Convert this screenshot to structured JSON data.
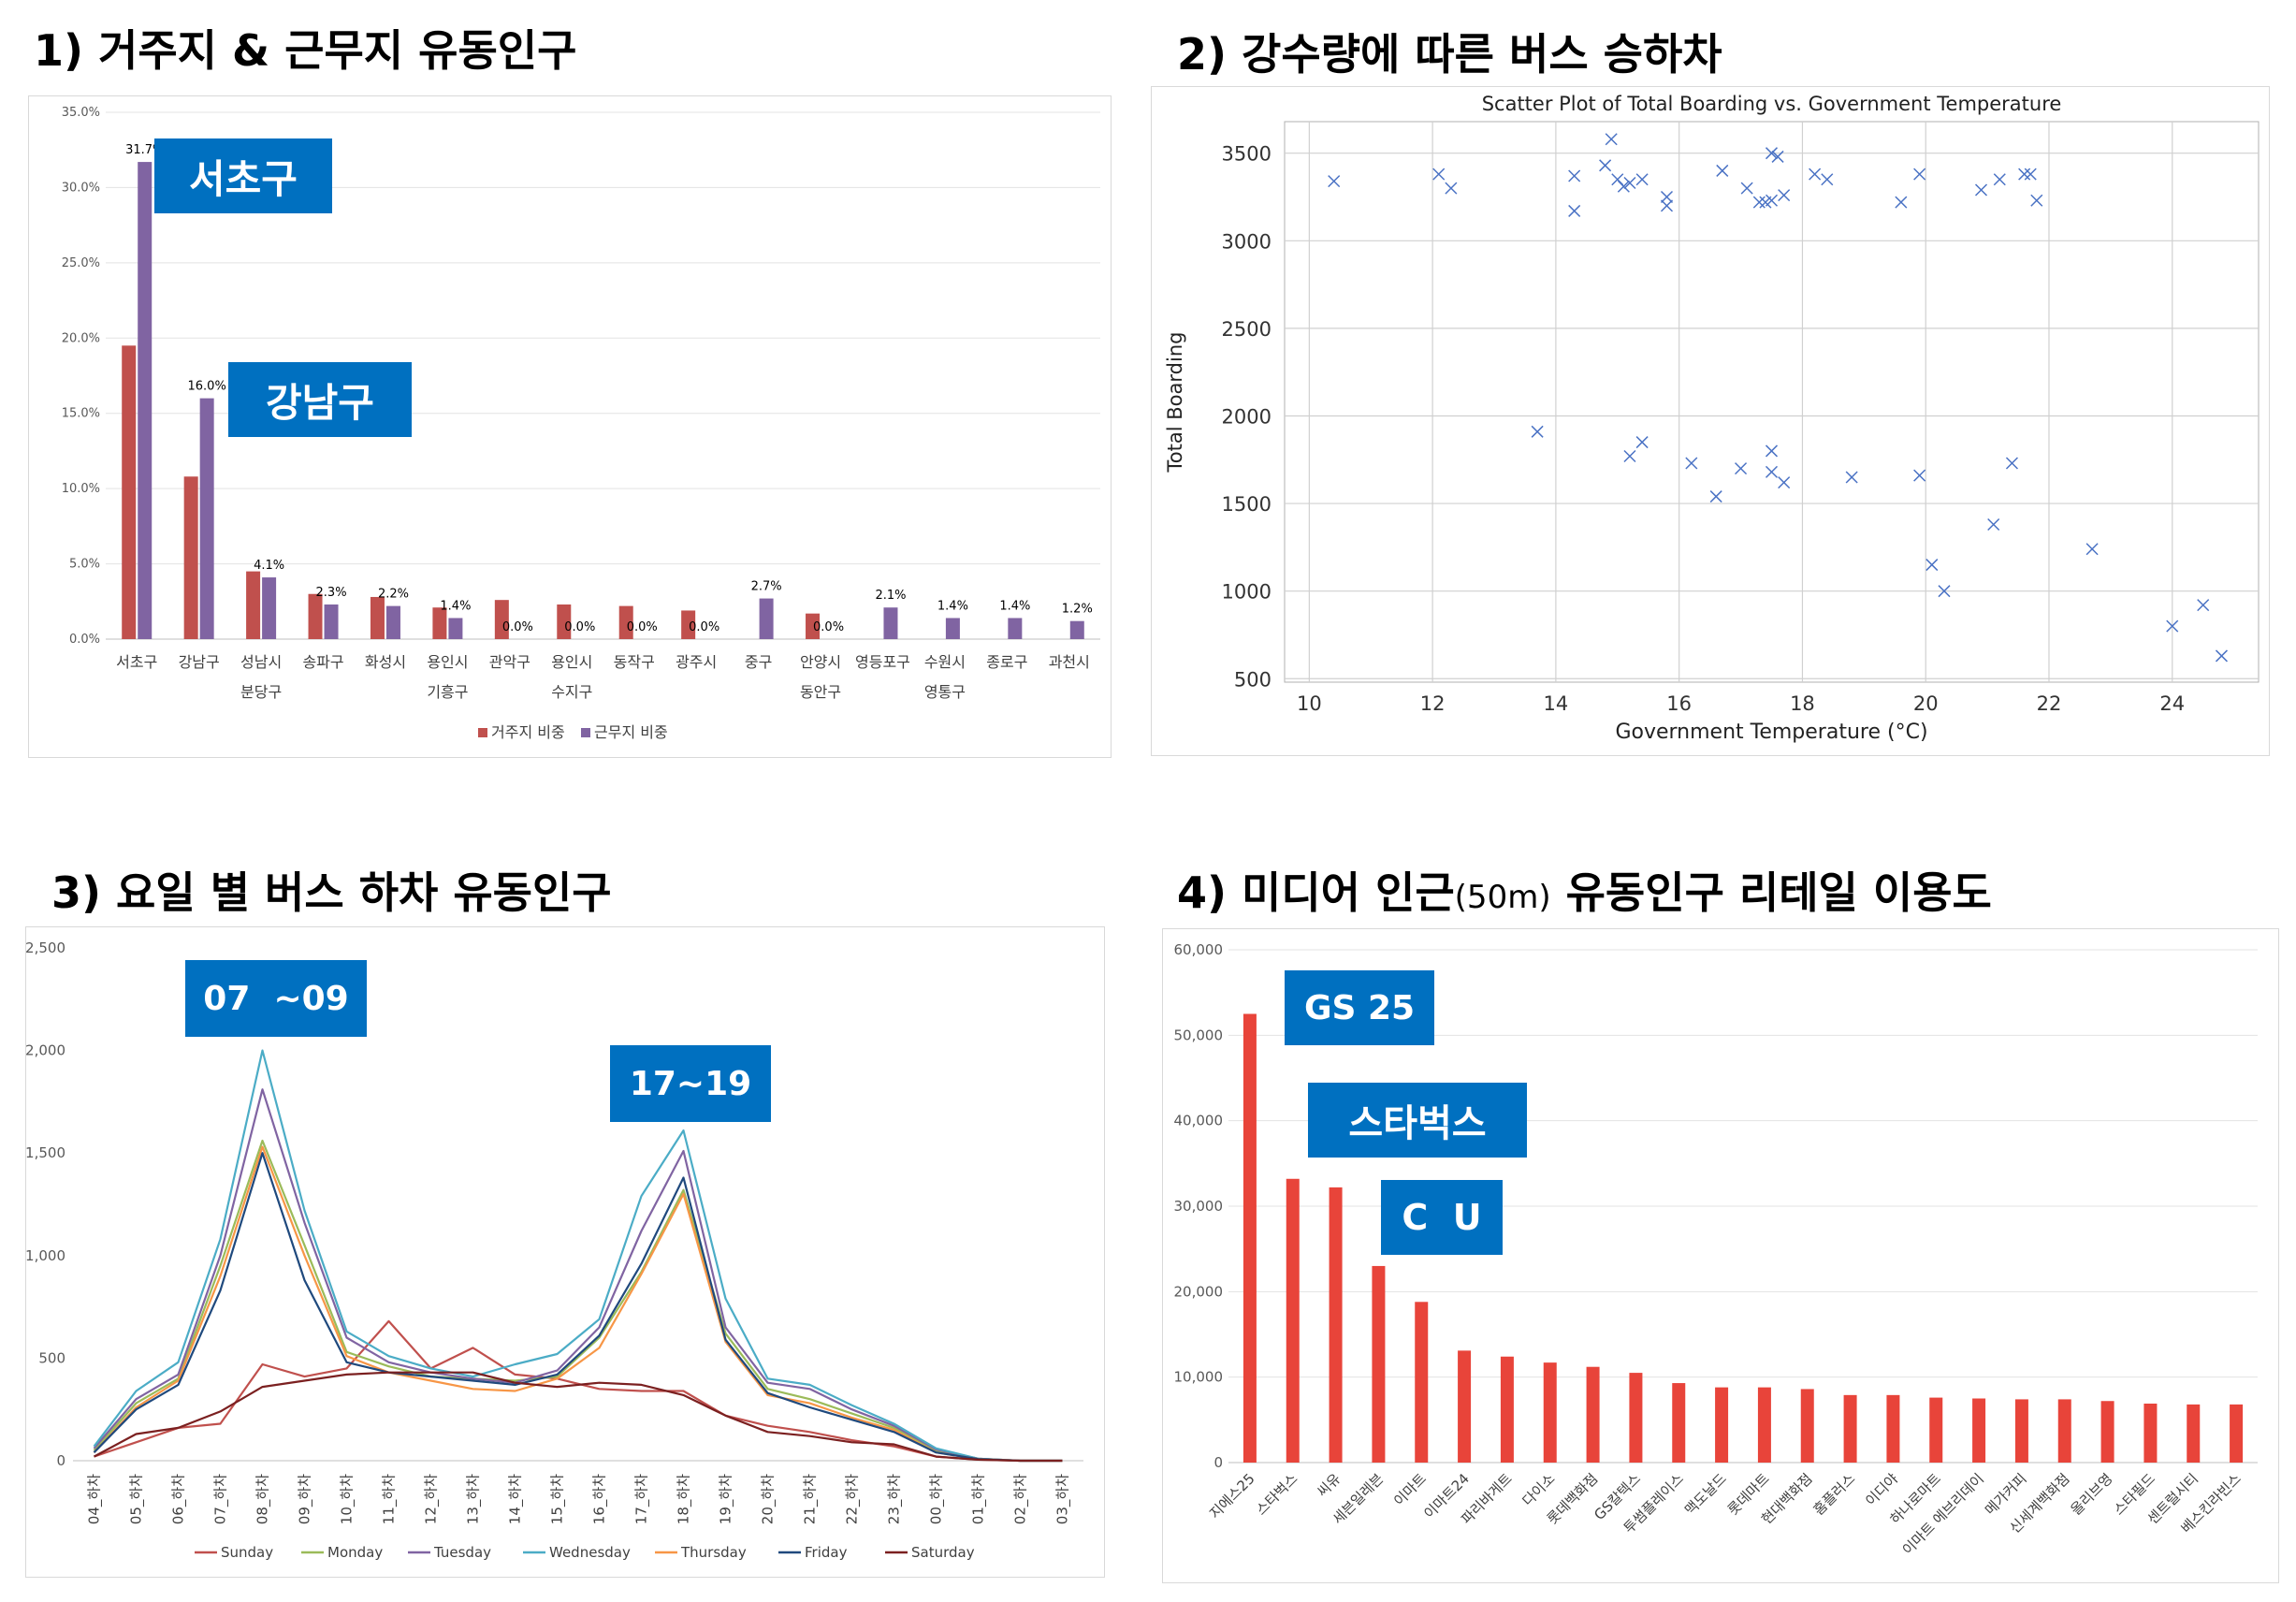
{
  "section1": {
    "number": "1)",
    "title": "거주지 & 근무지 유동인구",
    "callouts": [
      "서초구",
      "강남구"
    ],
    "chart_data": {
      "type": "bar",
      "categories": [
        [
          "서초구"
        ],
        [
          "강남구"
        ],
        [
          "성남시",
          "분당구"
        ],
        [
          "송파구"
        ],
        [
          "화성시"
        ],
        [
          "용인시",
          "기흥구"
        ],
        [
          "관악구"
        ],
        [
          "용인시",
          "수지구"
        ],
        [
          "동작구"
        ],
        [
          "광주시"
        ],
        [
          "중구"
        ],
        [
          "안양시",
          "동안구"
        ],
        [
          "영등포구"
        ],
        [
          "수원시",
          "영통구"
        ],
        [
          "종로구"
        ],
        [
          "과천시"
        ]
      ],
      "series": [
        {
          "name": "거주지 비중",
          "color": "#c0504d",
          "values": [
            19.5,
            10.8,
            4.5,
            3.0,
            2.8,
            2.1,
            2.6,
            2.3,
            2.2,
            1.9,
            0.0,
            1.7,
            0.0,
            0.0,
            0.0,
            0.0
          ]
        },
        {
          "name": "근무지 비중",
          "color": "#8064a2",
          "values": [
            31.7,
            16.0,
            4.1,
            2.3,
            2.2,
            1.4,
            0.0,
            0.0,
            0.0,
            0.0,
            2.7,
            0.0,
            2.1,
            1.4,
            1.4,
            1.2
          ]
        }
      ],
      "labels": [
        "31.7%",
        "16.0%",
        "4.1%",
        "2.3%",
        "2.2%",
        "1.4%",
        "0.0%",
        "0.0%",
        "0.0%",
        "0.0%",
        "2.7%",
        "0.0%",
        "2.1%",
        "1.4%",
        "1.4%",
        "1.2%"
      ],
      "yticks": [
        "0.0%",
        "5.0%",
        "10.0%",
        "15.0%",
        "20.0%",
        "25.0%",
        "30.0%",
        "35.0%"
      ],
      "ylim": [
        0,
        35
      ],
      "legend_position": "bottom",
      "grid": true
    }
  },
  "section2": {
    "number": "2)",
    "title": "강수량에 따른 버스 승하차",
    "chart_data": {
      "type": "scatter",
      "title": "Scatter Plot of Total Boarding vs. Government Temperature",
      "xlabel": "Government Temperature (°C)",
      "ylabel": "Total Boarding",
      "xlim": [
        9.6,
        25.4
      ],
      "ylim": [
        480,
        3680
      ],
      "xticks": [
        "10",
        "12",
        "14",
        "16",
        "18",
        "20",
        "22",
        "24"
      ],
      "yticks": [
        "500",
        "1000",
        "1500",
        "2000",
        "2500",
        "3000",
        "3500"
      ],
      "marker": "x",
      "color": "#4a72c4",
      "grid": true,
      "points": [
        [
          10.4,
          3340
        ],
        [
          12.1,
          3380
        ],
        [
          12.3,
          3300
        ],
        [
          14.3,
          3370
        ],
        [
          14.3,
          3170
        ],
        [
          14.8,
          3430
        ],
        [
          14.9,
          3580
        ],
        [
          15.0,
          3350
        ],
        [
          15.1,
          3310
        ],
        [
          15.2,
          3330
        ],
        [
          15.4,
          3350
        ],
        [
          15.8,
          3250
        ],
        [
          15.8,
          3200
        ],
        [
          16.7,
          3400
        ],
        [
          17.1,
          3300
        ],
        [
          17.3,
          3220
        ],
        [
          17.4,
          3220
        ],
        [
          17.5,
          3230
        ],
        [
          17.5,
          3500
        ],
        [
          17.6,
          3480
        ],
        [
          17.7,
          3260
        ],
        [
          18.2,
          3380
        ],
        [
          18.4,
          3350
        ],
        [
          19.6,
          3220
        ],
        [
          19.9,
          3380
        ],
        [
          20.9,
          3290
        ],
        [
          21.2,
          3350
        ],
        [
          21.6,
          3380
        ],
        [
          21.7,
          3380
        ],
        [
          21.8,
          3230
        ],
        [
          13.7,
          1910
        ],
        [
          15.2,
          1770
        ],
        [
          15.4,
          1850
        ],
        [
          16.2,
          1730
        ],
        [
          16.6,
          1540
        ],
        [
          17.0,
          1700
        ],
        [
          17.5,
          1800
        ],
        [
          17.5,
          1680
        ],
        [
          17.7,
          1620
        ],
        [
          18.8,
          1650
        ],
        [
          19.9,
          1660
        ],
        [
          21.4,
          1730
        ],
        [
          21.1,
          1380
        ],
        [
          20.1,
          1150
        ],
        [
          20.3,
          1000
        ],
        [
          22.7,
          1240
        ],
        [
          24.0,
          800
        ],
        [
          24.5,
          920
        ],
        [
          24.8,
          630
        ]
      ]
    }
  },
  "section3": {
    "number": "3)",
    "title": "요일 별 버스 하차 유동인구",
    "callouts": [
      "07  ~09",
      "17~19"
    ],
    "chart_data": {
      "type": "line",
      "categories": [
        "04_하차",
        "05_하차",
        "06_하차",
        "07_하차",
        "08_하차",
        "09_하차",
        "10_하차",
        "11_하차",
        "12_하차",
        "13_하차",
        "14_하차",
        "15_하차",
        "16_하차",
        "17_하차",
        "18_하차",
        "19_하차",
        "20_하차",
        "21_하차",
        "22_하차",
        "23_하차",
        "00_하차",
        "01_하차",
        "02_하차",
        "03_하차"
      ],
      "yticks": [
        "0",
        "500",
        "1,000",
        "1,500",
        "2,000",
        "2,500"
      ],
      "ylim": [
        0,
        2500
      ],
      "legend_position": "bottom",
      "series": [
        {
          "name": "Sunday",
          "color": "#c0504d",
          "values": [
            20,
            90,
            160,
            180,
            470,
            410,
            450,
            680,
            450,
            550,
            420,
            400,
            350,
            340,
            340,
            220,
            170,
            140,
            100,
            70,
            20,
            5,
            0,
            0
          ]
        },
        {
          "name": "Monday",
          "color": "#9bbb59",
          "values": [
            50,
            280,
            400,
            950,
            1560,
            1050,
            530,
            460,
            410,
            400,
            390,
            410,
            600,
            920,
            1320,
            620,
            350,
            300,
            230,
            160,
            50,
            10,
            0,
            0
          ]
        },
        {
          "name": "Tuesday",
          "color": "#8064a2",
          "values": [
            60,
            300,
            420,
            1000,
            1810,
            1160,
            600,
            480,
            430,
            400,
            380,
            440,
            650,
            1120,
            1510,
            650,
            380,
            350,
            250,
            170,
            55,
            10,
            0,
            0
          ]
        },
        {
          "name": "Wednesday",
          "color": "#4bacc6",
          "values": [
            70,
            340,
            480,
            1080,
            2000,
            1220,
            630,
            510,
            450,
            410,
            470,
            520,
            690,
            1290,
            1610,
            790,
            400,
            370,
            270,
            180,
            60,
            10,
            0,
            0
          ]
        },
        {
          "name": "Thursday",
          "color": "#f79646",
          "values": [
            40,
            260,
            390,
            900,
            1530,
            1000,
            510,
            430,
            390,
            350,
            340,
            400,
            550,
            910,
            1300,
            580,
            320,
            280,
            210,
            150,
            40,
            8,
            0,
            0
          ]
        },
        {
          "name": "Friday",
          "color": "#1f497d",
          "values": [
            40,
            250,
            370,
            830,
            1500,
            880,
            480,
            430,
            410,
            390,
            370,
            420,
            610,
            960,
            1380,
            590,
            330,
            260,
            200,
            140,
            40,
            8,
            0,
            0
          ]
        },
        {
          "name": "Saturday",
          "color": "#7b2020",
          "values": [
            20,
            130,
            160,
            240,
            360,
            390,
            420,
            430,
            430,
            430,
            380,
            360,
            380,
            370,
            320,
            220,
            140,
            120,
            90,
            80,
            20,
            5,
            0,
            0
          ]
        }
      ]
    }
  },
  "section4": {
    "number": "4)",
    "title_a": "미디어 인근",
    "title_sub": "(50m)",
    "title_b": "유동인구 리테일 이용도",
    "callouts": [
      "GS 25",
      "스타벅스",
      "C  U"
    ],
    "chart_data": {
      "type": "bar",
      "color": "#e8443a",
      "categories": [
        "지에스25",
        "스타벅스",
        "씨유",
        "세븐일레븐",
        "이마트",
        "이마트24",
        "파리바게트",
        "다이소",
        "롯데백화점",
        "GS칼텍스",
        "투썸플레이스",
        "맥도날드",
        "롯데마트",
        "현대백화점",
        "홈플러스",
        "이디야",
        "하나로마트",
        "이마트 에브리데이",
        "메가커피",
        "신세계백화점",
        "올리브영",
        "스타필드",
        "센트럴시티",
        "베스킨라빈스"
      ],
      "values": [
        52500,
        33200,
        32200,
        23000,
        18800,
        13100,
        12400,
        11700,
        11200,
        10500,
        9300,
        8800,
        8800,
        8600,
        7900,
        7900,
        7600,
        7500,
        7400,
        7400,
        7200,
        6900,
        6800,
        6800
      ],
      "yticks": [
        "0",
        "10,000",
        "20,000",
        "30,000",
        "40,000",
        "50,000",
        "60,000"
      ],
      "ylim": [
        0,
        60000
      ],
      "grid": true
    }
  }
}
